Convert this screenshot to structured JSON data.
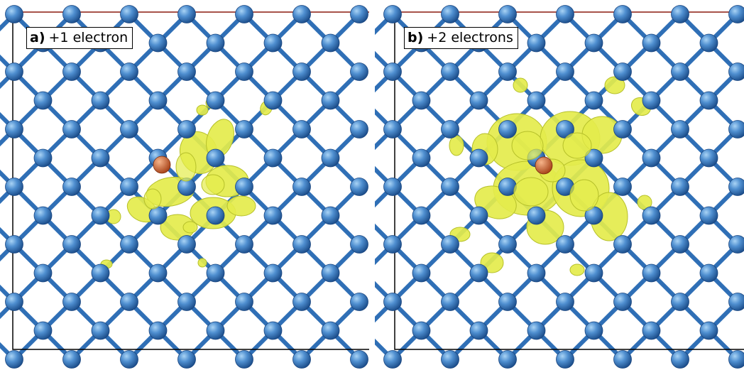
{
  "panels": [
    {
      "id": "a",
      "letter": "a)",
      "caption": "+1 electron"
    },
    {
      "id": "b",
      "letter": "b)",
      "caption": "+2 electrons"
    }
  ],
  "colors": {
    "atom": "#2f72b8",
    "atom_highlight": "#a9d3f5",
    "bond": "#2f6fb6",
    "dopant": "#d9622b",
    "density": "#e4ec4c",
    "density_edge": "#b6c02a",
    "frame": "#000000",
    "frame_top": "#c0392b"
  }
}
